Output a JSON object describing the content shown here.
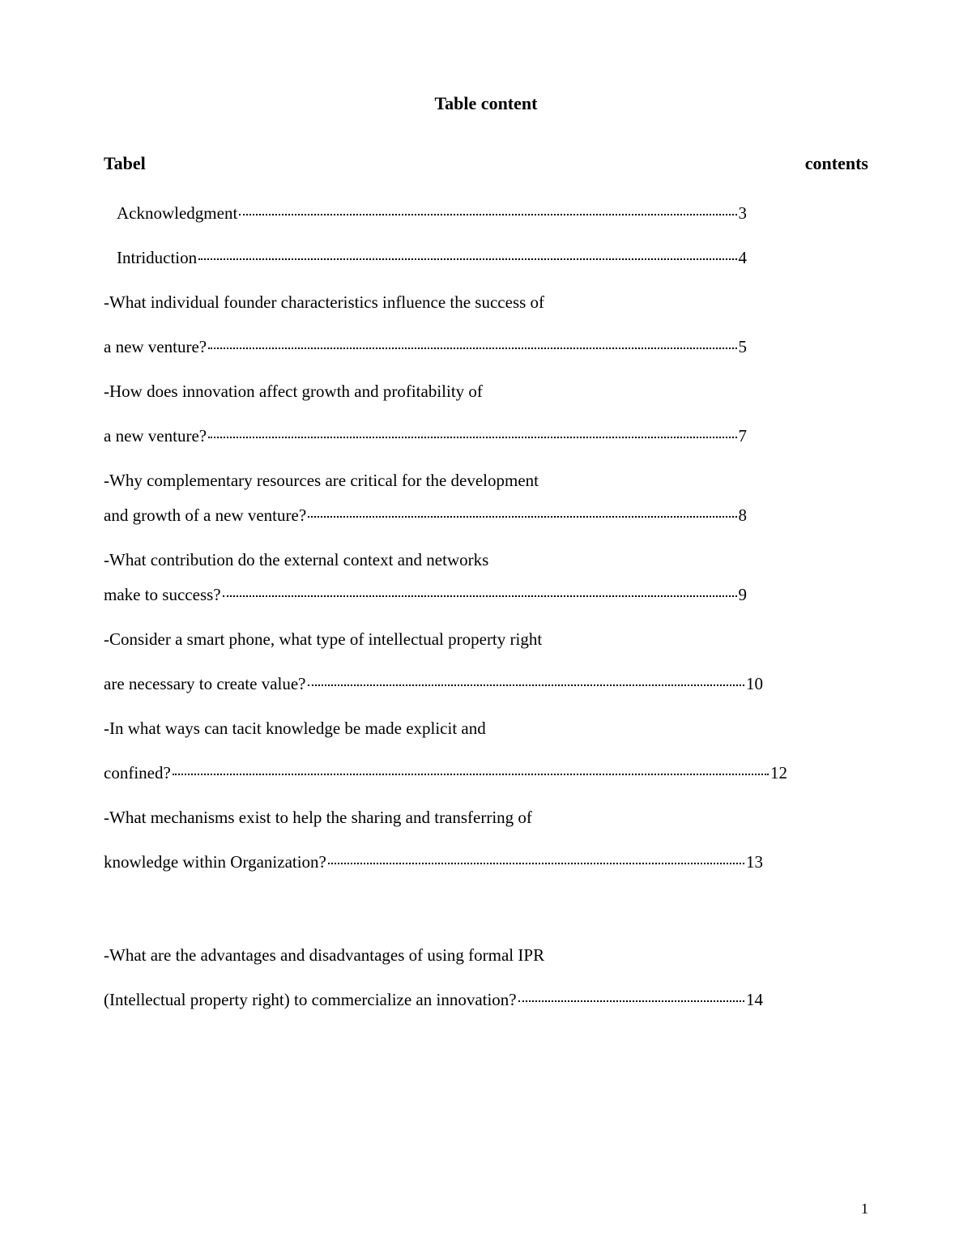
{
  "title": "Table content",
  "header_left": "Tabel",
  "header_right": "contents",
  "entries": [
    {
      "text": "Acknowledgment",
      "page": "3",
      "indent": true,
      "prefix": "",
      "rightPad": "right-pad"
    },
    {
      "text": "Intriduction",
      "page": "4",
      "indent": true,
      "prefix": "",
      "rightPad": "right-pad"
    },
    {
      "line1": "-What individual founder characteristics influence the success of",
      "text": " a new venture?",
      "page": "5",
      "indent": false,
      "rightPad": "right-pad"
    },
    {
      "line1": "-How does innovation affect growth and profitability of",
      "text": "a new venture?",
      "page": "7",
      "indent": false,
      "rightPad": "right-pad"
    },
    {
      "line1": "-Why complementary resources are critical for the development",
      "text": "and growth of a new venture?",
      "page": "8",
      "indent": false,
      "rightPad": "right-pad",
      "gap": "18"
    },
    {
      "line1": "-What contribution do the external context and networks",
      "text": " make to success?",
      "page": "9",
      "indent": false,
      "rightPad": "right-pad",
      "gap": "18"
    },
    {
      "line1": "-Consider a smart phone, what type of intellectual property right",
      "text": " are necessary to create value?",
      "page": "10",
      "indent": false,
      "rightPad": "right-pad-md"
    },
    {
      "line1": "-In what ways can tacit knowledge be made explicit and",
      "text": " confined?",
      "page": "12",
      "indent": false,
      "rightPad": "right-pad-sm"
    },
    {
      "line1": "-What mechanisms exist to help the sharing and transferring of",
      "text": "knowledge within Organization?",
      "page": "13",
      "indent": false,
      "rightPad": "right-pad-md"
    },
    {
      "line1": "-What are the advantages and disadvantages of using formal IPR",
      "text": " (Intellectual property right) to commercialize an innovation?",
      "page": "14",
      "indent": false,
      "rightPad": "right-pad-md",
      "gapBefore": true
    }
  ],
  "page_number": "1",
  "colors": {
    "background": "#ffffff",
    "text": "#000000"
  },
  "typography": {
    "font_family": "Georgia, Times New Roman, serif",
    "title_size": 22,
    "body_size": 21,
    "pagenum_size": 18
  }
}
